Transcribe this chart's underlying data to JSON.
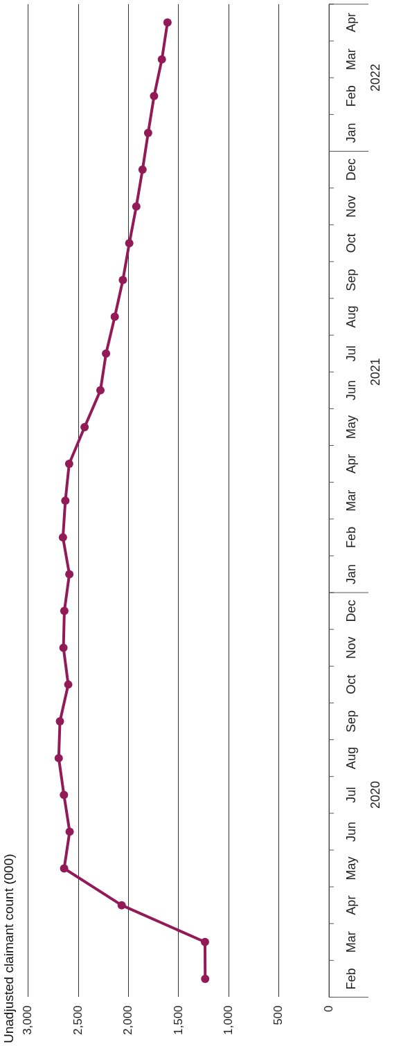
{
  "chart_data": {
    "type": "line",
    "title": "Unadjusted claimant count (000)",
    "orientation": "horizontal",
    "categories": [
      "Apr",
      "Mar",
      "Feb",
      "Jan",
      "Dec",
      "Nov",
      "Oct",
      "Sep",
      "Aug",
      "Jul",
      "Jun",
      "May",
      "Apr",
      "Mar",
      "Feb",
      "Jan",
      "Dec",
      "Nov",
      "Oct",
      "Sep",
      "Aug",
      "Jul",
      "Jun",
      "May",
      "Apr",
      "Mar",
      "Feb"
    ],
    "series": [
      {
        "color": "#921a57",
        "values": [
          1611,
          1667,
          1745,
          1804,
          1860,
          1922,
          1992,
          2056,
          2137,
          2224,
          2280,
          2438,
          2592,
          2630,
          2654,
          2590,
          2640,
          2649,
          2601,
          2684,
          2696,
          2644,
          2587,
          2642,
          2068,
          1237,
          1235
        ]
      }
    ],
    "xlim": [
      3000,
      0
    ],
    "xticks": [
      {
        "value": 3000,
        "label": "3,000"
      },
      {
        "value": 2500,
        "label": "2,500"
      },
      {
        "value": 2000,
        "label": "2,000"
      },
      {
        "value": 1500,
        "label": "1,500"
      },
      {
        "value": 1000,
        "label": "1,000"
      },
      500,
      0
    ],
    "annotations": [
      "2022",
      "2021",
      "2020"
    ],
    "grid": "x",
    "legend": false,
    "marker": "circle",
    "line_style": "solid"
  }
}
